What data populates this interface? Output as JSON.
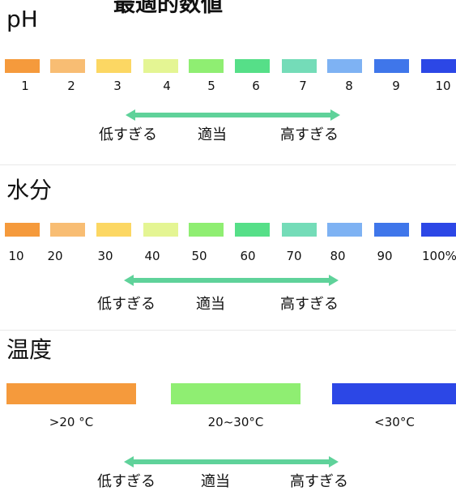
{
  "header": {
    "title": "最適的数値"
  },
  "ph": {
    "title": "pH",
    "labels": [
      "1",
      "2",
      "3",
      "4",
      "5",
      "6",
      "7",
      "8",
      "9",
      "10"
    ],
    "colors": [
      "#f59a3c",
      "#f8bd73",
      "#fcd763",
      "#e4f593",
      "#8fee72",
      "#56df88",
      "#74dcb8",
      "#7eb2f3",
      "#3f76ea",
      "#2c47e6"
    ],
    "indicators": {
      "low": "低すぎる",
      "ok": "適当",
      "high": "高すぎる"
    }
  },
  "moisture": {
    "title": "水分",
    "labels": [
      "10",
      "20",
      "30",
      "40",
      "50",
      "60",
      "70",
      "80",
      "90",
      "100%"
    ],
    "colors": [
      "#f59a3c",
      "#f8bd73",
      "#fcd763",
      "#e4f593",
      "#8fee72",
      "#56df88",
      "#74dcb8",
      "#7eb2f3",
      "#3f76ea",
      "#2c47e6"
    ],
    "indicators": {
      "low": "低すぎる",
      "ok": "適当",
      "high": "高すぎる"
    }
  },
  "temperature": {
    "title": "温度",
    "bars": [
      {
        "label": ">20 °C",
        "color": "#f59a3c"
      },
      {
        "label": "20~30°C",
        "color": "#8fee72"
      },
      {
        "label": "<30°C",
        "color": "#2c47e6"
      }
    ],
    "indicators": {
      "low": "低すぎる",
      "ok": "適当",
      "high": "高すぎる"
    }
  },
  "arrow_color": "#5fd29a"
}
